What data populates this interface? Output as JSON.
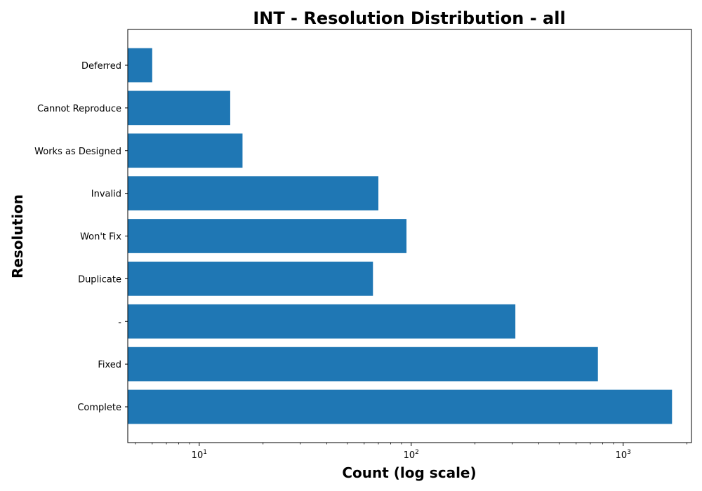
{
  "chart_data": {
    "type": "bar",
    "orientation": "horizontal",
    "title": "INT - Resolution Distribution - all",
    "xlabel": "Count (log scale)",
    "ylabel": "Resolution",
    "x_scale": "log",
    "xlim": [
      4.6,
      2100
    ],
    "x_ticks": [
      {
        "value": 10,
        "base": "10",
        "exp": "1"
      },
      {
        "value": 100,
        "base": "10",
        "exp": "2"
      },
      {
        "value": 1000,
        "base": "10",
        "exp": "3"
      }
    ],
    "categories": [
      "Complete",
      "Fixed",
      "-",
      "Duplicate",
      "Won't Fix",
      "Invalid",
      "Works as Designed",
      "Cannot Reproduce",
      "Deferred"
    ],
    "values": [
      1700,
      760,
      310,
      66,
      95,
      70,
      16,
      14,
      6
    ],
    "bar_color": "#1f77b4",
    "grid": false,
    "legend": "none"
  }
}
